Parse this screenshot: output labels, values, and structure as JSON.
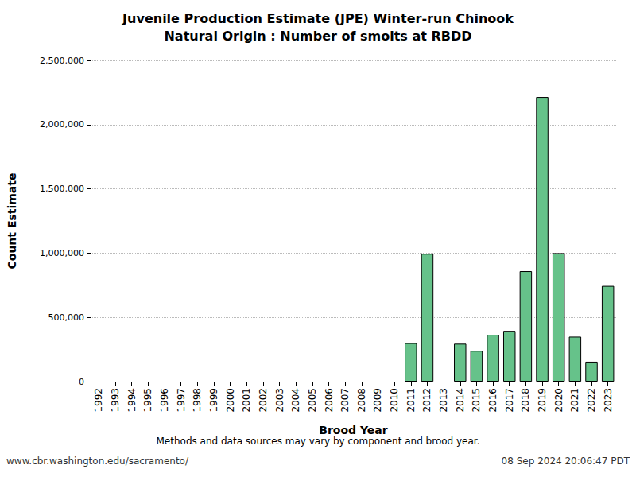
{
  "chart_data": {
    "type": "bar",
    "title": "Juvenile Production Estimate (JPE) Winter-run Chinook",
    "subtitle": "Natural Origin : Number of smolts at RBDD",
    "x_label": "Brood Year",
    "y_label": "Count Estimate",
    "categories": [
      "1992",
      "1993",
      "1994",
      "1995",
      "1996",
      "1997",
      "1998",
      "1999",
      "2000",
      "2001",
      "2002",
      "2003",
      "2004",
      "2005",
      "2006",
      "2007",
      "2008",
      "2009",
      "2010",
      "2011",
      "2012",
      "2013",
      "2014",
      "2015",
      "2016",
      "2017",
      "2018",
      "2019",
      "2020",
      "2021",
      "2022",
      "2023"
    ],
    "values": [
      null,
      null,
      null,
      null,
      null,
      null,
      null,
      null,
      null,
      null,
      null,
      null,
      null,
      null,
      null,
      null,
      null,
      null,
      null,
      300000,
      995000,
      null,
      295000,
      240000,
      365000,
      395000,
      860000,
      2215000,
      1000000,
      350000,
      155000,
      745000
    ],
    "color": "#66c28a",
    "ylim": [
      0,
      2500000
    ],
    "yticks": [
      0,
      {
        "value": 500000,
        "label": "500,000"
      },
      {
        "value": 1000000,
        "label": "1,000,000"
      },
      {
        "value": 1500000,
        "label": "1,500,000"
      },
      {
        "value": 2000000,
        "label": "2,000,000"
      },
      {
        "value": 2500000,
        "label": "2,500,000"
      }
    ],
    "grid": true,
    "annotations": [
      "Methods and data sources may vary by component and brood year.",
      "www.cbr.washington.edu/sacramento/",
      "08 Sep 2024 20:06:47 PDT"
    ]
  }
}
